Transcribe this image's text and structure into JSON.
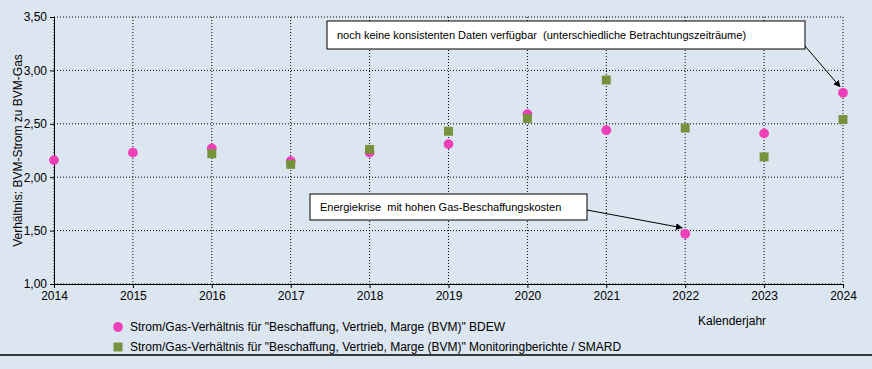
{
  "chart_data": {
    "type": "scatter",
    "x_label": "Kalenderjahr",
    "y_label": "Verhältnis: BVM-Strom zu BVM-Gas",
    "x": [
      2014,
      2015,
      2016,
      2017,
      2018,
      2019,
      2020,
      2021,
      2022,
      2023,
      2024
    ],
    "series": [
      {
        "name": "Strom/Gas-Verhältnis für \"Beschaffung, Vertrieb, Marge (BVM)\" BDEW",
        "color": "#ee3fb8",
        "marker": "circle",
        "values": [
          2.16,
          2.23,
          2.27,
          2.15,
          2.23,
          2.31,
          2.59,
          2.44,
          1.47,
          2.41,
          2.79
        ]
      },
      {
        "name": "Strom/Gas-Verhältnis für \"Beschaffung, Vertrieb, Marge (BVM)\" Monitoringberichte / SMARD",
        "color": "#76923c",
        "marker": "square",
        "values": [
          null,
          null,
          2.22,
          2.12,
          2.26,
          2.43,
          2.55,
          2.91,
          2.46,
          2.19,
          2.54
        ]
      }
    ],
    "xlim": [
      2014,
      2024
    ],
    "xticks": [
      2014,
      2015,
      2016,
      2017,
      2018,
      2019,
      2020,
      2021,
      2022,
      2023,
      2024
    ],
    "ylim": [
      1,
      3.5
    ],
    "yticks": [
      {
        "value": 1,
        "label": "1,00"
      },
      {
        "value": 1.5,
        "label": "1,50"
      },
      {
        "value": 2,
        "label": "2,00"
      },
      {
        "value": 2.5,
        "label": "2,50"
      },
      {
        "value": 3,
        "label": "3,00"
      },
      {
        "value": 3.5,
        "label": "3,50"
      }
    ],
    "grid": true,
    "legend": "bottom",
    "annotations": [
      {
        "text": "noch keine konsistenten Daten verfügbar  (unterschiedliche Betrachtungszeiträume)",
        "x": 2024,
        "y": 2.79
      },
      {
        "text": "Energiekrise  mit hohen Gas-Beschaffungskosten",
        "x": 2022,
        "y": 1.47
      }
    ]
  }
}
